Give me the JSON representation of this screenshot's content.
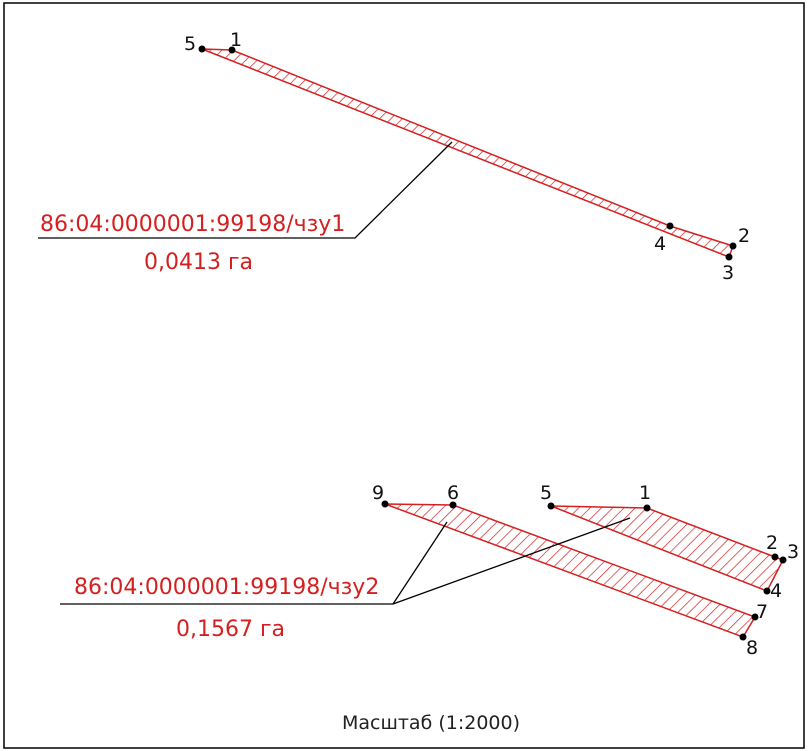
{
  "parcel1": {
    "cadastral": "86:04:0000001:99198/чзу1",
    "area": "0,0413 га",
    "point_labels": [
      "1",
      "2",
      "3",
      "4",
      "5"
    ]
  },
  "parcel2": {
    "cadastral": "86:04:0000001:99198/чзу2",
    "area": "0,1567 га",
    "point_labels": [
      "1",
      "2",
      "3",
      "4",
      "5",
      "6",
      "7",
      "8",
      "9"
    ]
  },
  "scale": "Масштаб (1:2000)",
  "colors": {
    "parcel": "#d42020",
    "leader": "#000000",
    "frame": "#000000"
  }
}
